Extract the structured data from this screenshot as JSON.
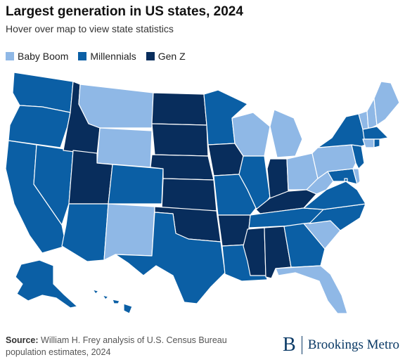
{
  "header": {
    "title": "Largest generation in US states, 2024",
    "subtitle": "Hover over map to view state statistics"
  },
  "legend": [
    {
      "label": "Baby Boom",
      "color": "#8fb8e6"
    },
    {
      "label": "Millennials",
      "color": "#0b5fa5"
    },
    {
      "label": "Gen Z",
      "color": "#082d5c"
    }
  ],
  "footer": {
    "source_label": "Source:",
    "source_text": "William H. Frey analysis of U.S. Census Bureau population estimates, 2024",
    "logo_mark": "B",
    "logo_text": "Brookings Metro"
  },
  "states": {
    "WA": "Millennials",
    "OR": "Millennials",
    "CA": "Millennials",
    "NV": "Millennials",
    "ID": "Gen Z",
    "UT": "Gen Z",
    "MT": "Baby Boom",
    "WY": "Baby Boom",
    "CO": "Millennials",
    "AZ": "Millennials",
    "NM": "Baby Boom",
    "ND": "Gen Z",
    "SD": "Gen Z",
    "NE": "Gen Z",
    "KS": "Gen Z",
    "OK": "Gen Z",
    "TX": "Millennials",
    "MN": "Millennials",
    "IA": "Gen Z",
    "MO": "Millennials",
    "AR": "Gen Z",
    "LA": "Millennials",
    "WI": "Baby Boom",
    "IL": "Millennials",
    "MI": "Baby Boom",
    "IN": "Gen Z",
    "OH": "Baby Boom",
    "KY": "Gen Z",
    "TN": "Millennials",
    "MS": "Gen Z",
    "AL": "Gen Z",
    "GA": "Millennials",
    "FL": "Baby Boom",
    "SC": "Baby Boom",
    "NC": "Millennials",
    "VA": "Millennials",
    "WV": "Baby Boom",
    "PA": "Baby Boom",
    "NY": "Millennials",
    "VT": "Baby Boom",
    "NH": "Baby Boom",
    "ME": "Baby Boom",
    "MA": "Millennials",
    "CT": "Baby Boom",
    "RI": "Millennials",
    "NJ": "Millennials",
    "DE": "Baby Boom",
    "MD": "Millennials",
    "DC": "Millennials",
    "AK": "Millennials",
    "HI": "Millennials"
  }
}
